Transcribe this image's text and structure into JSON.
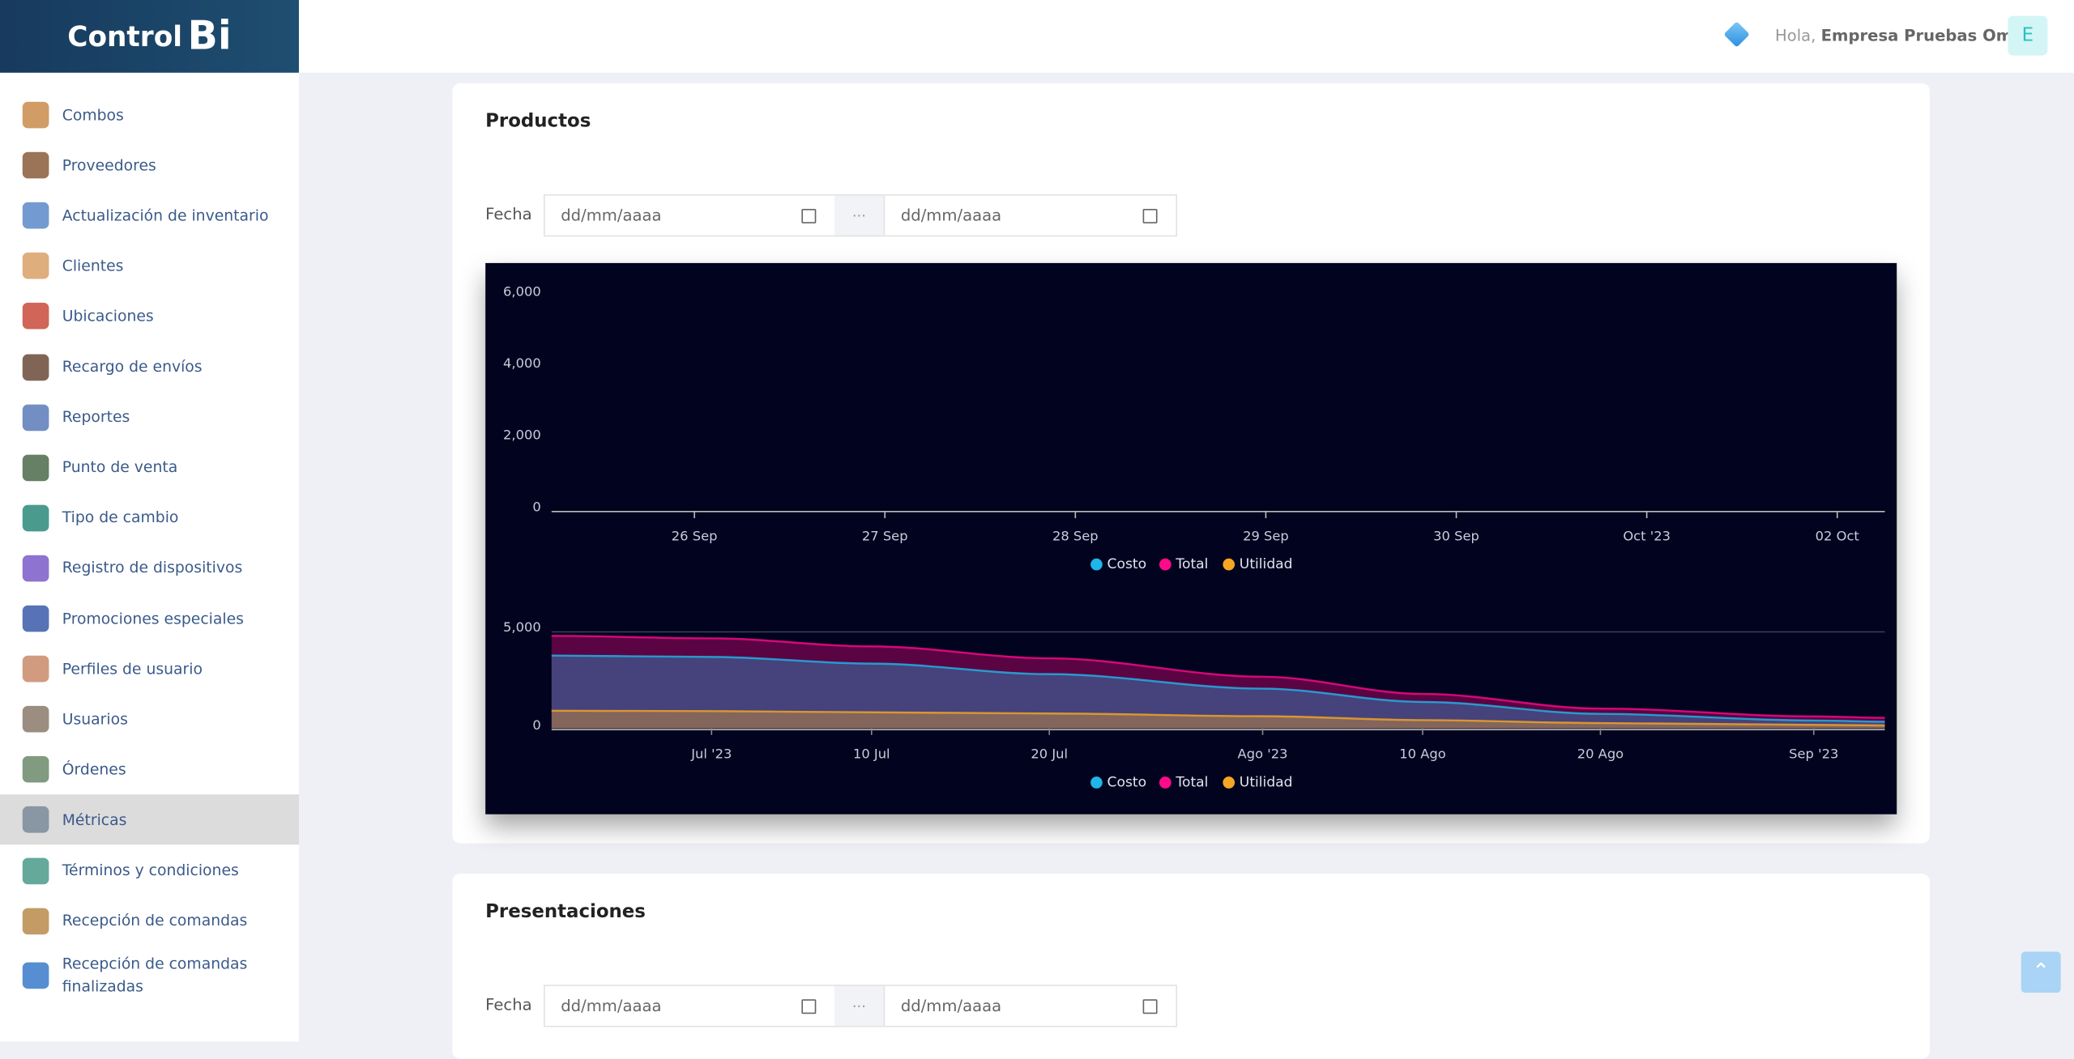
{
  "sidebar": {
    "brand": "Control",
    "brand_mark": "Bi",
    "active_item": 14,
    "items": [
      "Combos",
      "Proveedores",
      "Actualización de inventario",
      "Clientes",
      "Ubicaciones",
      "Recargo de envíos",
      "Reportes",
      "Punto de venta",
      "Tipo de cambio",
      "Registro de dispositivos",
      "Promociones especiales",
      "Perfiles de usuario",
      "Usuarios",
      "Órdenes",
      "Métricas",
      "Términos y condiciones",
      "Recepción de comandas",
      "Recepción de comandas finalizadas"
    ]
  },
  "header": {
    "greeting": "Hola,",
    "user": "Empresa Pruebas Omar",
    "avatar": "E"
  },
  "sections": [
    {
      "title": "Productos",
      "filter": {
        "label": "Fecha",
        "start_placeholder": "dd/mm/aaaa",
        "separator": "···",
        "end_placeholder": "dd/mm/aaaa"
      }
    },
    {
      "title": "Presentaciones",
      "filter": {
        "label": "Fecha",
        "start_placeholder": "dd/mm/aaaa",
        "separator": "···",
        "end_placeholder": "dd/mm/aaaa"
      }
    }
  ],
  "chart_data": [
    {
      "type": "area",
      "categories": [
        "26 Sep",
        "27 Sep",
        "28 Sep",
        "29 Sep",
        "30 Sep",
        "Oct '23",
        "02 Oct"
      ],
      "series": [
        {
          "name": "Costo",
          "color": "#1fb6e8",
          "values": [
            null,
            null,
            null,
            null,
            null,
            null,
            null
          ]
        },
        {
          "name": "Total",
          "color": "#ff0a8a",
          "values": [
            null,
            null,
            null,
            null,
            null,
            null,
            null
          ]
        },
        {
          "name": "Utilidad",
          "color": "#f5a623",
          "values": [
            null,
            null,
            null,
            null,
            null,
            null,
            null
          ]
        }
      ],
      "ylim": [
        0,
        6000
      ],
      "yticks": [
        0,
        {
          "value": 2000,
          "label": "2,000"
        },
        {
          "value": 4000,
          "label": "4,000"
        },
        {
          "value": 6000,
          "label": "6,000"
        }
      ],
      "grid": false
    },
    {
      "type": "area",
      "x": [
        "2023-06-22",
        "2023-07-01",
        "2023-07-10",
        "2023-07-20",
        "2023-08-01",
        "2023-08-10",
        "2023-08-20",
        "2023-09-01",
        "2023-09-05"
      ],
      "xlim": [
        "2023-06-22",
        "2023-09-05"
      ],
      "xticks": [
        {
          "value": "2023-07-01",
          "label": "Jul '23"
        },
        {
          "value": "2023-07-10",
          "label": "10 Jul"
        },
        {
          "value": "2023-07-20",
          "label": "20 Jul"
        },
        {
          "value": "2023-08-01",
          "label": "Ago '23"
        },
        {
          "value": "2023-08-10",
          "label": "10 Ago"
        },
        {
          "value": "2023-08-20",
          "label": "20 Ago"
        },
        {
          "value": "2023-09-01",
          "label": "Sep '23"
        }
      ],
      "series": [
        {
          "name": "Costo",
          "color": "#1fb6e8",
          "values": [
            3720,
            3650,
            3310,
            2770,
            2030,
            1350,
            740,
            400,
            340
          ]
        },
        {
          "name": "Total",
          "color": "#ff0a8a",
          "values": [
            4730,
            4600,
            4190,
            3580,
            2640,
            1760,
            1010,
            610,
            540
          ]
        },
        {
          "name": "Utilidad",
          "color": "#f5a623",
          "values": [
            900,
            880,
            820,
            760,
            620,
            420,
            270,
            180,
            150
          ]
        }
      ],
      "ylim": [
        0,
        5000
      ],
      "yticks": [
        0,
        {
          "value": 5000,
          "label": "5,000"
        }
      ],
      "grid": true
    }
  ]
}
